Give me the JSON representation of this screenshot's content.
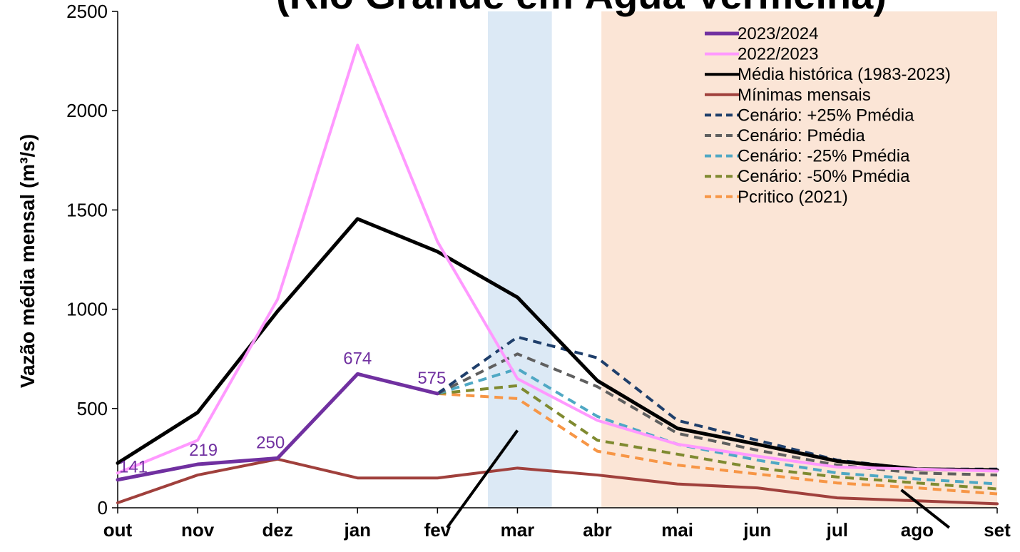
{
  "chart_data": {
    "type": "line",
    "title": "(Rio Grande em Água Vermelha)",
    "ylabel": "Vazão média mensal (m³/s)",
    "xlabel": "",
    "ylim": [
      0,
      2500
    ],
    "yticks": [
      "0",
      "500",
      "1000",
      "1500",
      "2000",
      "2500"
    ],
    "categories": [
      "out",
      "nov",
      "dez",
      "jan",
      "fev",
      "mar",
      "abr",
      "mai",
      "jun",
      "jul",
      "ago",
      "set"
    ],
    "grid": false,
    "legend_position": "top-right",
    "shaded_regions": [
      {
        "from": 4.63,
        "to": 5.43,
        "color": "#dce9f5"
      },
      {
        "from": 6.05,
        "to": 11.0,
        "color": "#fbe5d6"
      }
    ],
    "series": [
      {
        "name": "2023/2024",
        "color": "#7030a0",
        "dash": false,
        "width": 5,
        "values": [
          141,
          219,
          250,
          674,
          575,
          null,
          null,
          null,
          null,
          null,
          null,
          null
        ],
        "labels": [
          "141",
          "219",
          "250",
          "674",
          "575"
        ]
      },
      {
        "name": "2022/2023",
        "color": "#ff99ff",
        "dash": false,
        "width": 4,
        "values": [
          175,
          340,
          1050,
          2330,
          1340,
          650,
          440,
          320,
          260,
          205,
          195,
          185
        ]
      },
      {
        "name": "Média histórica (1983-2023)",
        "color": "#000000",
        "dash": false,
        "width": 5,
        "values": [
          225,
          480,
          990,
          1455,
          1290,
          1060,
          640,
          400,
          320,
          235,
          195,
          190
        ]
      },
      {
        "name": "Mínimas mensais",
        "color": "#a0403c",
        "dash": false,
        "width": 4,
        "values": [
          25,
          165,
          245,
          150,
          150,
          200,
          165,
          120,
          100,
          50,
          35,
          20
        ]
      },
      {
        "name": "Cenário: +25% Pmédia",
        "color": "#1f3f6b",
        "dash": true,
        "width": 4,
        "values": [
          null,
          null,
          null,
          null,
          575,
          860,
          755,
          440,
          340,
          240,
          195,
          195
        ]
      },
      {
        "name": "Cenário: Pmédia",
        "color": "#5f5f5f",
        "dash": true,
        "width": 4,
        "values": [
          null,
          null,
          null,
          null,
          575,
          775,
          610,
          375,
          290,
          215,
          175,
          165
        ]
      },
      {
        "name": "Cenário: -25% Pmédia",
        "color": "#4fa8c4",
        "dash": true,
        "width": 4,
        "values": [
          null,
          null,
          null,
          null,
          575,
          700,
          460,
          320,
          240,
          175,
          145,
          120
        ]
      },
      {
        "name": "Cenário: -50% Pmédia",
        "color": "#7f8a30",
        "dash": true,
        "width": 4,
        "values": [
          null,
          null,
          null,
          null,
          575,
          615,
          340,
          270,
          200,
          155,
          125,
          95
        ]
      },
      {
        "name": "Pcritico (2021)",
        "color": "#f79646",
        "dash": true,
        "width": 4,
        "values": [
          null,
          null,
          null,
          null,
          575,
          550,
          285,
          215,
          170,
          125,
          100,
          70
        ]
      }
    ],
    "annotation_lines": [
      {
        "from": [
          5.0,
          390
        ],
        "to": [
          4.12,
          -100
        ]
      },
      {
        "from": [
          9.8,
          90
        ],
        "to": [
          10.4,
          -100
        ]
      }
    ]
  }
}
